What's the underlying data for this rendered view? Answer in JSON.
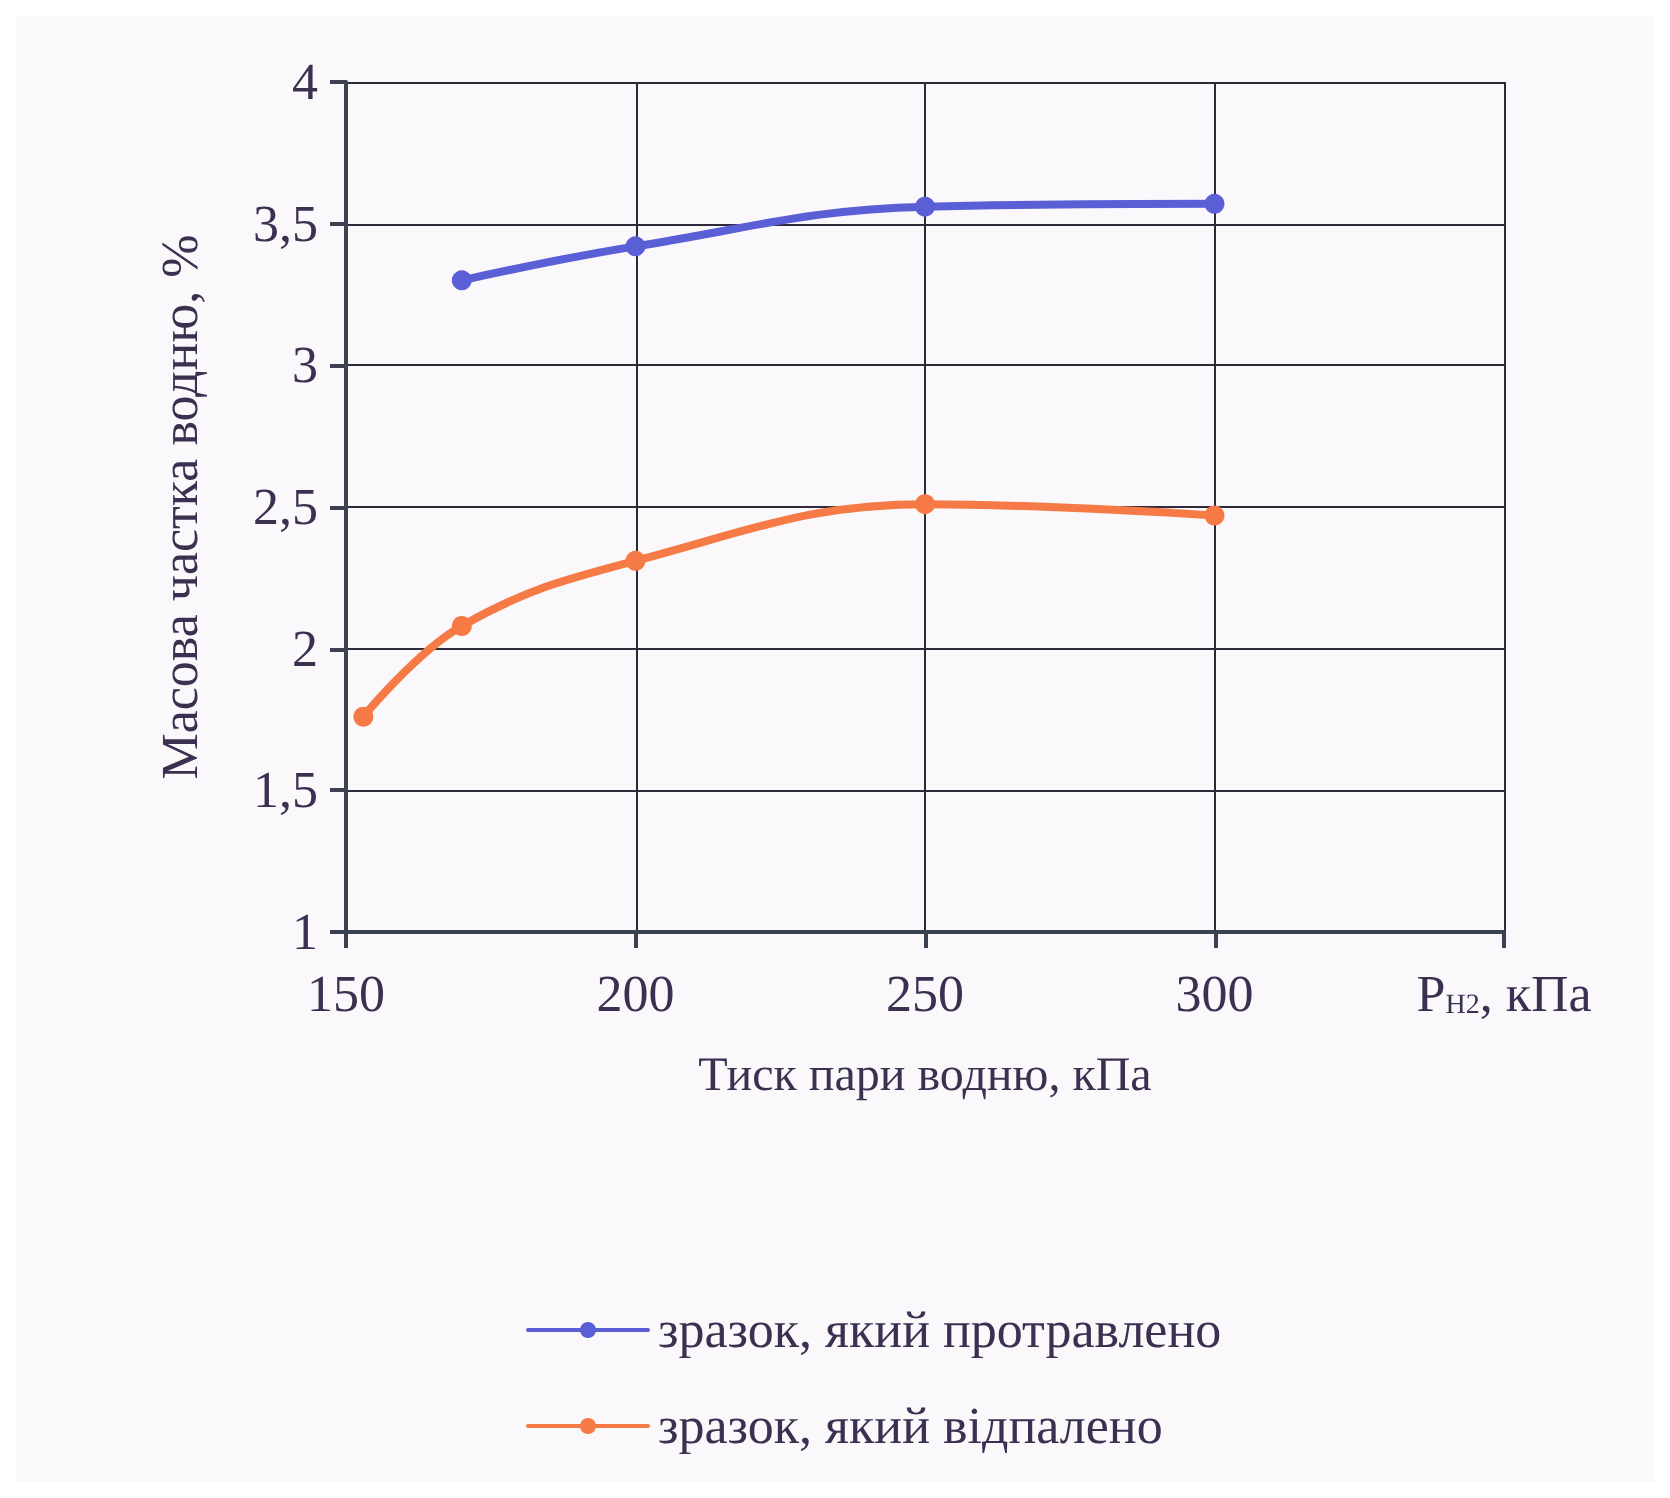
{
  "chart_data": {
    "type": "line",
    "xlabel": "Тиск пари водню, кПа",
    "ylabel": "Масова частка водню, %",
    "series": [
      {
        "name": "зразок, який протравлено",
        "color": "#5b5fd6",
        "x": [
          170,
          200,
          250,
          300
        ],
        "values": [
          3.3,
          3.42,
          3.56,
          3.57
        ]
      },
      {
        "name": "зразок, який відпалено",
        "color": "#f57a45",
        "x": [
          153,
          170,
          200,
          250,
          300
        ],
        "values": [
          1.76,
          2.08,
          2.31,
          2.51,
          2.47
        ]
      }
    ],
    "xlim": [
      150,
      350
    ],
    "xticks": [
      150,
      200,
      250,
      300,
      {
        "value": 350,
        "label": "P$_{H2}$, кПа"
      }
    ],
    "ylim": [
      1,
      4
    ],
    "yticks": [
      1,
      {
        "value": 1.5,
        "label": "1,5"
      },
      2,
      {
        "value": 2.5,
        "label": "2,5"
      },
      3,
      {
        "value": 3.5,
        "label": "3,5"
      },
      4
    ],
    "grid": true,
    "legend": "bottom",
    "marker": "circle",
    "line_style": "solid"
  }
}
